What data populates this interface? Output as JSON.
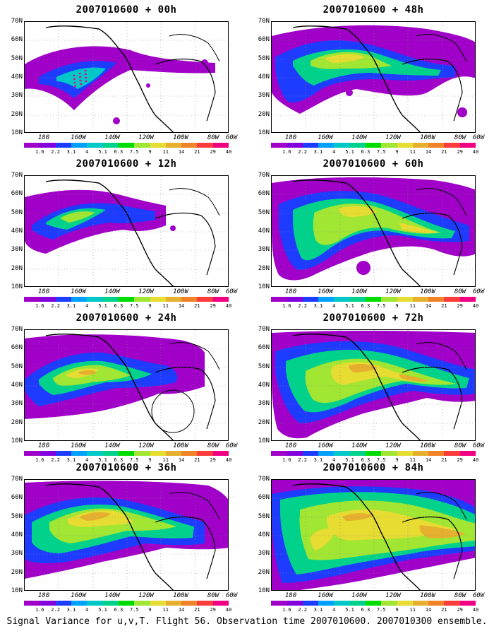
{
  "figure": {
    "caption": "Signal Variance for u,v,T. Flight 56. Observation time 2007010600. 2007010300 ensemble.",
    "lat_labels": [
      "70N",
      "60N",
      "50N",
      "40N",
      "30N",
      "20N",
      "10N"
    ],
    "lon_labels": [
      "180",
      "160W",
      "140W",
      "120W",
      "100W",
      "80W",
      "60W"
    ],
    "colorbar": {
      "colors": [
        "#a000c8",
        "#8200dc",
        "#1e3cff",
        "#00a0ff",
        "#00c8c8",
        "#00d28c",
        "#00dc00",
        "#a0e632",
        "#e6dc32",
        "#e6af2d",
        "#f08228",
        "#fa3c3c",
        "#f00082"
      ],
      "labels": [
        "1.6",
        "2.2",
        "3.1",
        "4",
        "5.1",
        "6.3",
        "7.5",
        "9",
        "11",
        "14",
        "21",
        "29",
        "40"
      ]
    },
    "panels": [
      {
        "title": "2007010600 + 00h"
      },
      {
        "title": "2007010600 + 48h"
      },
      {
        "title": "2007010600 + 12h"
      },
      {
        "title": "2007010600 + 60h"
      },
      {
        "title": "2007010600 + 24h"
      },
      {
        "title": "2007010600 + 72h"
      },
      {
        "title": "2007010600 + 36h"
      },
      {
        "title": "2007010600 + 84h"
      }
    ]
  }
}
